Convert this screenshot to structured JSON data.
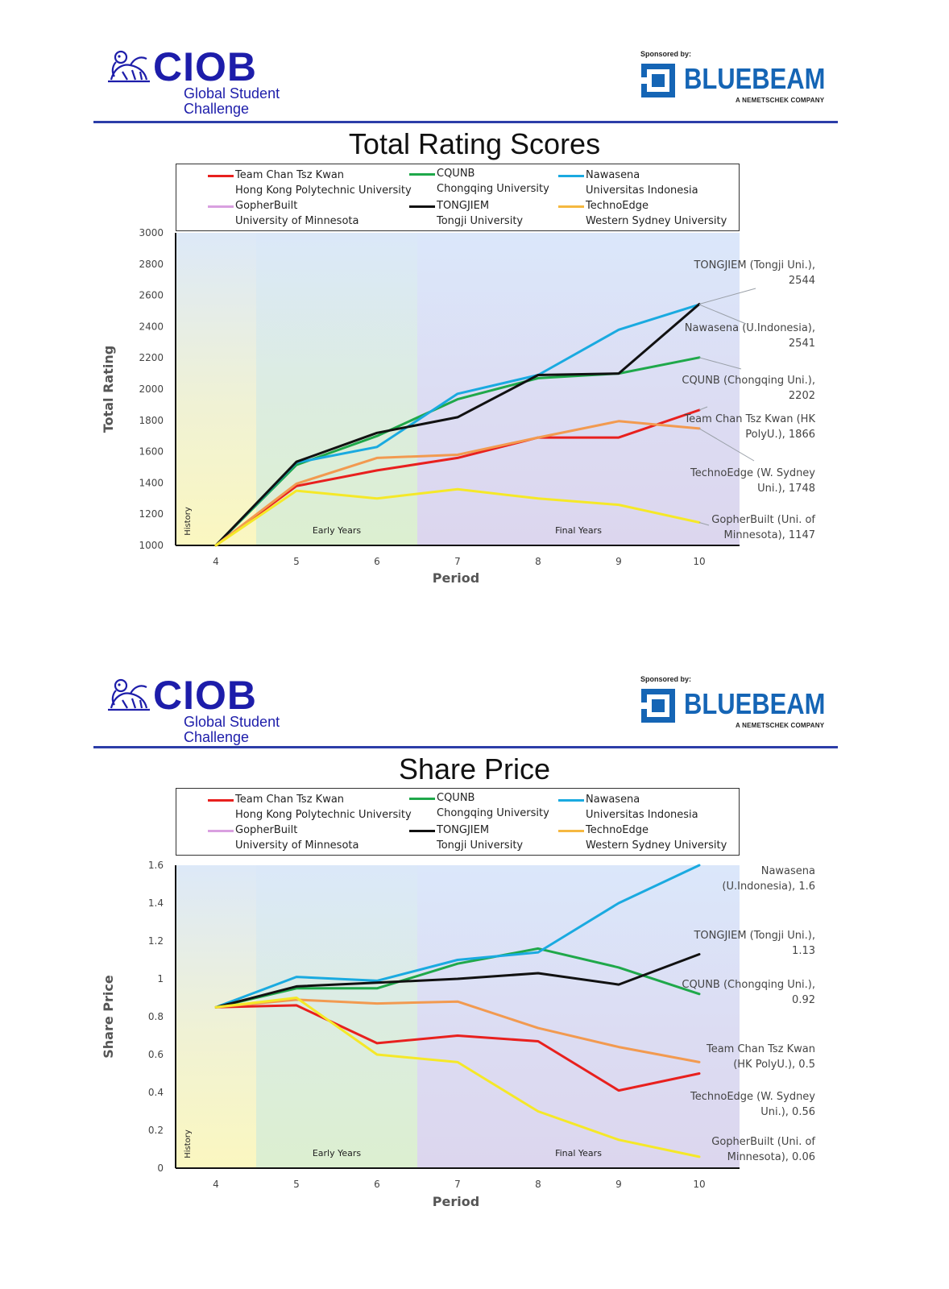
{
  "branding": {
    "ciob_word": "CIOB",
    "ciob_sub_line1": "Global Student",
    "ciob_sub_line2": "Challenge",
    "sponsor_label": "Sponsored by:",
    "sponsor_name": "BLUEBEAM",
    "sponsor_tagline": "A NEMETSCHEK COMPANY",
    "colors": {
      "ciob_blue": "#1d1daa",
      "bluebeam_blue": "#1565b5",
      "rule": "#2c3da8"
    }
  },
  "legend": [
    {
      "line1": "Team Chan Tsz Kwan",
      "line2": "Hong Kong Polytechnic University",
      "color": "#e8201e"
    },
    {
      "line1": "CQUNB",
      "line2": "Chongqing University",
      "color": "#1fa84a"
    },
    {
      "line1": "Nawasena",
      "line2": "Universitas Indonesia",
      "color": "#1aaae0"
    },
    {
      "line1": "GopherBuilt",
      "line2": "University of Minnesota",
      "color": "#d9a0e0"
    },
    {
      "line1": "TONGJIEM",
      "line2": "Tongji University",
      "color": "#111111"
    },
    {
      "line1": "TechnoEdge",
      "line2": "Western Sydney University",
      "color": "#f5b840"
    }
  ],
  "chart_data": [
    {
      "type": "line",
      "title": "Total Rating Scores",
      "xlabel": "Period",
      "ylabel": "Total Rating",
      "x": [
        4,
        5,
        6,
        7,
        8,
        9,
        10
      ],
      "ylim": [
        1000,
        3000
      ],
      "yticks": [
        1000,
        1200,
        1400,
        1600,
        1800,
        2000,
        2200,
        2400,
        2600,
        2800,
        3000
      ],
      "yticklabels": [
        "1000",
        "1200",
        "1400",
        "1600",
        "1800",
        "2000",
        "2200",
        "2400",
        "2600",
        "2800",
        "3000"
      ],
      "xticklabels": [
        "4",
        "5",
        "6",
        "7",
        "8",
        "9",
        "10"
      ],
      "grid": false,
      "legend_position": "top",
      "phases": [
        {
          "label": "History",
          "start": 3.5,
          "end": 4.5,
          "color": "#fbf7c0"
        },
        {
          "label": "Early Years",
          "start": 4.5,
          "end": 6.5,
          "color": "#dcefd0"
        },
        {
          "label": "Final Years",
          "start": 6.5,
          "end": 10.5,
          "color": "#dcd6ee"
        }
      ],
      "series": [
        {
          "name": "Team Chan Tsz Kwan",
          "color": "#e8201e",
          "values": [
            1000,
            1380,
            1480,
            1560,
            1690,
            1690,
            1866
          ]
        },
        {
          "name": "CQUNB",
          "color": "#1fa84a",
          "values": [
            1000,
            1515,
            1700,
            1935,
            2070,
            2100,
            2202
          ]
        },
        {
          "name": "Nawasena",
          "color": "#1aaae0",
          "values": [
            1000,
            1530,
            1630,
            1970,
            2090,
            2380,
            2541
          ]
        },
        {
          "name": "TONGJIEM",
          "color": "#111111",
          "values": [
            1000,
            1535,
            1720,
            1820,
            2090,
            2100,
            2544
          ]
        },
        {
          "name": "TechnoEdge",
          "color": "#f29a50",
          "values": [
            1000,
            1395,
            1560,
            1580,
            1690,
            1795,
            1748
          ]
        },
        {
          "name": "GopherBuilt",
          "color": "#f5e828",
          "values": [
            1000,
            1350,
            1300,
            1360,
            1300,
            1260,
            1147
          ]
        }
      ],
      "annotations": [
        {
          "line1": "TONGJIEM (Tongji Uni.),",
          "line2": "2544"
        },
        {
          "line1": "Nawasena (U.Indonesia),",
          "line2": "2541"
        },
        {
          "line1": "CQUNB (Chongqing Uni.),",
          "line2": "2202"
        },
        {
          "line1": "Team Chan Tsz Kwan (HK",
          "line2": "PolyU.), 1866"
        },
        {
          "line1": "TechnoEdge (W. Sydney",
          "line2": "Uni.), 1748"
        },
        {
          "line1": "GopherBuilt (Uni. of",
          "line2": "Minnesota), 1147"
        }
      ]
    },
    {
      "type": "line",
      "title": "Share Price",
      "xlabel": "Period",
      "ylabel": "Share Price",
      "x": [
        4,
        5,
        6,
        7,
        8,
        9,
        10
      ],
      "ylim": [
        0,
        1.6
      ],
      "yticks": [
        0,
        0.2,
        0.4,
        0.6,
        0.8,
        1,
        1.2,
        1.4,
        1.6
      ],
      "yticklabels": [
        "0",
        "0.2",
        "0.4",
        "0.6",
        "0.8",
        "1",
        "1.2",
        "1.4",
        "1.6"
      ],
      "xticklabels": [
        "4",
        "5",
        "6",
        "7",
        "8",
        "9",
        "10"
      ],
      "grid": false,
      "legend_position": "top",
      "phases": [
        {
          "label": "History",
          "start": 3.5,
          "end": 4.5,
          "color": "#fbf7c0"
        },
        {
          "label": "Early Years",
          "start": 4.5,
          "end": 6.5,
          "color": "#dcefd0"
        },
        {
          "label": "Final Years",
          "start": 6.5,
          "end": 10.5,
          "color": "#dcd6ee"
        }
      ],
      "series": [
        {
          "name": "Team Chan Tsz Kwan",
          "color": "#e8201e",
          "values": [
            0.85,
            0.86,
            0.66,
            0.7,
            0.67,
            0.41,
            0.5
          ]
        },
        {
          "name": "CQUNB",
          "color": "#1fa84a",
          "values": [
            0.85,
            0.95,
            0.95,
            1.08,
            1.16,
            1.06,
            0.92
          ]
        },
        {
          "name": "Nawasena",
          "color": "#1aaae0",
          "values": [
            0.85,
            1.01,
            0.99,
            1.1,
            1.14,
            1.4,
            1.6
          ]
        },
        {
          "name": "TONGJIEM",
          "color": "#111111",
          "values": [
            0.85,
            0.96,
            0.98,
            1.0,
            1.03,
            0.97,
            1.13
          ]
        },
        {
          "name": "TechnoEdge",
          "color": "#f29a50",
          "values": [
            0.85,
            0.89,
            0.87,
            0.88,
            0.74,
            0.64,
            0.56
          ]
        },
        {
          "name": "GopherBuilt",
          "color": "#f5e828",
          "values": [
            0.85,
            0.9,
            0.6,
            0.56,
            0.3,
            0.15,
            0.06
          ]
        }
      ],
      "annotations": [
        {
          "line1": "Nawasena",
          "line2": "(U.Indonesia), 1.6"
        },
        {
          "line1": "TONGJIEM (Tongji Uni.),",
          "line2": "1.13"
        },
        {
          "line1": "CQUNB (Chongqing Uni.),",
          "line2": "0.92"
        },
        {
          "line1": "Team Chan Tsz Kwan",
          "line2": "(HK PolyU.), 0.5"
        },
        {
          "line1": "TechnoEdge (W. Sydney",
          "line2": "Uni.), 0.56"
        },
        {
          "line1": "GopherBuilt (Uni. of",
          "line2": "Minnesota), 0.06"
        }
      ]
    }
  ]
}
